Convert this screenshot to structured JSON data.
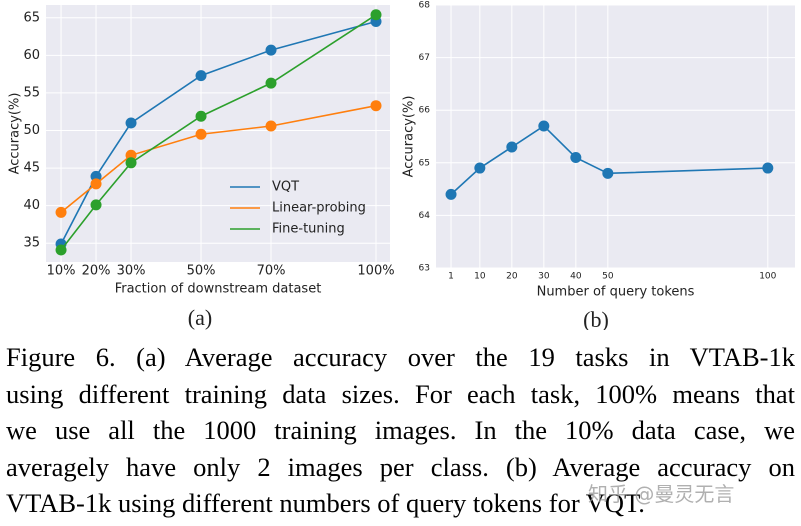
{
  "chart_data": [
    {
      "type": "line",
      "subcaption": "(a)",
      "xlabel": "Fraction of downstream dataset",
      "ylabel": "Accuracy(%)",
      "x": [
        10,
        20,
        30,
        50,
        70,
        100
      ],
      "xlim": [
        5.7,
        104
      ],
      "xticks": [
        {
          "value": 10,
          "label": "10%"
        },
        {
          "value": 20,
          "label": "20%"
        },
        {
          "value": 30,
          "label": "30%"
        },
        {
          "value": 50,
          "label": "50%"
        },
        {
          "value": 70,
          "label": "70%"
        },
        {
          "value": 100,
          "label": "100%"
        }
      ],
      "ylim": [
        32.5,
        66.7
      ],
      "yticks": [
        35,
        40,
        45,
        50,
        55,
        60,
        65
      ],
      "grid": true,
      "legend": "lower right",
      "series": [
        {
          "name": "VQT",
          "color": "#1f77b4",
          "values": [
            34.9,
            43.9,
            51.0,
            57.3,
            60.7,
            64.5
          ]
        },
        {
          "name": "Linear-probing",
          "color": "#ff7f0e",
          "values": [
            39.1,
            42.9,
            46.7,
            49.5,
            50.6,
            53.3
          ]
        },
        {
          "name": "Fine-tuning",
          "color": "#2ca02c",
          "values": [
            34.1,
            40.1,
            45.7,
            51.9,
            56.3,
            65.4
          ]
        }
      ]
    },
    {
      "type": "line",
      "subcaption": "(b)",
      "xlabel": "Number of query tokens",
      "ylabel": "Accuracy(%)",
      "x": [
        1,
        10,
        20,
        30,
        40,
        50,
        100
      ],
      "xlim": [
        -3.7,
        108.5
      ],
      "xticks": [
        1,
        10,
        20,
        30,
        40,
        50,
        100
      ],
      "ylim": [
        63,
        68
      ],
      "yticks": [
        63,
        64,
        65,
        66,
        67,
        68
      ],
      "grid": true,
      "series": [
        {
          "color": "#1f77b4",
          "values": [
            64.4,
            64.9,
            65.3,
            65.7,
            65.1,
            64.8,
            64.9
          ]
        }
      ]
    }
  ],
  "caption": [
    "Figure 6.  (a) Average accuracy over the 19 tasks in VTAB-1k",
    "using different training data sizes. For each task, 100% means that",
    "we use all the 1000 training images.  In the 10% data case, we",
    "averagely have only 2 images per class. (b) Average accuracy on",
    "VTAB-1k using different numbers of query tokens for VQT."
  ],
  "watermark": "知乎 @曼灵无言"
}
